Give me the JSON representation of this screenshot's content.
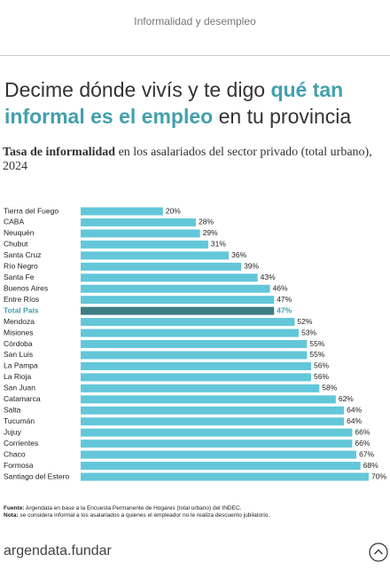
{
  "header": {
    "section": "Informalidad y desempleo"
  },
  "headline": {
    "parts": [
      "Decime dónde vivís y te digo ",
      "qué tan informal es el empleo",
      " en tu provincia"
    ]
  },
  "chart_data": {
    "type": "bar",
    "title_parts": [
      "Tasa de informalidad",
      " en los asalariados del sector privado (total urbano), 2024"
    ],
    "categories": [
      "Tierra del Fuego",
      "CABA",
      "Neuquén",
      "Chubut",
      "Santa Cruz",
      "Río Negro",
      "Santa Fe",
      "Buenos Aires",
      "Entre Ríos",
      "Total País",
      "Mendoza",
      "Misiones",
      "Córdoba",
      "San Luis",
      "La Pampa",
      "La Rioja",
      "San Juan",
      "Catamarca",
      "Salta",
      "Tucumán",
      "Jujuy",
      "Corrientes",
      "Chaco",
      "Formosa",
      "Santiago del Estero"
    ],
    "values": [
      20,
      28,
      29,
      31,
      36,
      39,
      43,
      46,
      47,
      47,
      52,
      53,
      55,
      55,
      56,
      56,
      58,
      62,
      64,
      64,
      66,
      66,
      67,
      68,
      70
    ],
    "value_labels": [
      "20%",
      "28%",
      "29%",
      "31%",
      "36%",
      "39%",
      "43%",
      "46%",
      "47%",
      "47%",
      "52%",
      "53%",
      "55%",
      "55%",
      "56%",
      "56%",
      "58%",
      "62%",
      "64%",
      "64%",
      "66%",
      "66%",
      "67%",
      "68%",
      "70%"
    ],
    "color": "#63c7d9",
    "colors": [
      "#63c7d9",
      "#63c7d9",
      "#63c7d9",
      "#63c7d9",
      "#63c7d9",
      "#63c7d9",
      "#63c7d9",
      "#63c7d9",
      "#63c7d9",
      "#3e7c84",
      "#63c7d9",
      "#63c7d9",
      "#63c7d9",
      "#63c7d9",
      "#63c7d9",
      "#63c7d9",
      "#63c7d9",
      "#63c7d9",
      "#63c7d9",
      "#63c7d9",
      "#63c7d9",
      "#63c7d9",
      "#63c7d9",
      "#63c7d9",
      "#63c7d9"
    ]
  },
  "footer": {
    "source_label": "Fuente:",
    "source": " Argendata en base a la Encuesta Permanente de Hogares (total urbano) del INDEC.",
    "note_label": "Nota:",
    "note": " se considera informal a los asalariados a quienes el empleador no le realiza descuento jubilatorio.",
    "brand": "argendata.fundar"
  }
}
